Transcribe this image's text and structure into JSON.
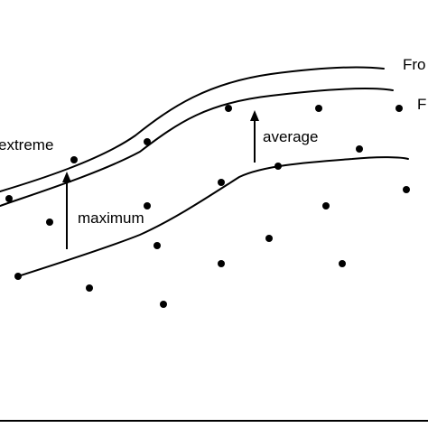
{
  "labels": {
    "front_outer": "Fro",
    "front_inner": "F",
    "extreme": "extreme",
    "average": "average",
    "maximum": "maximum"
  },
  "colors": {
    "ink": "#000000",
    "background": "#ffffff"
  }
}
